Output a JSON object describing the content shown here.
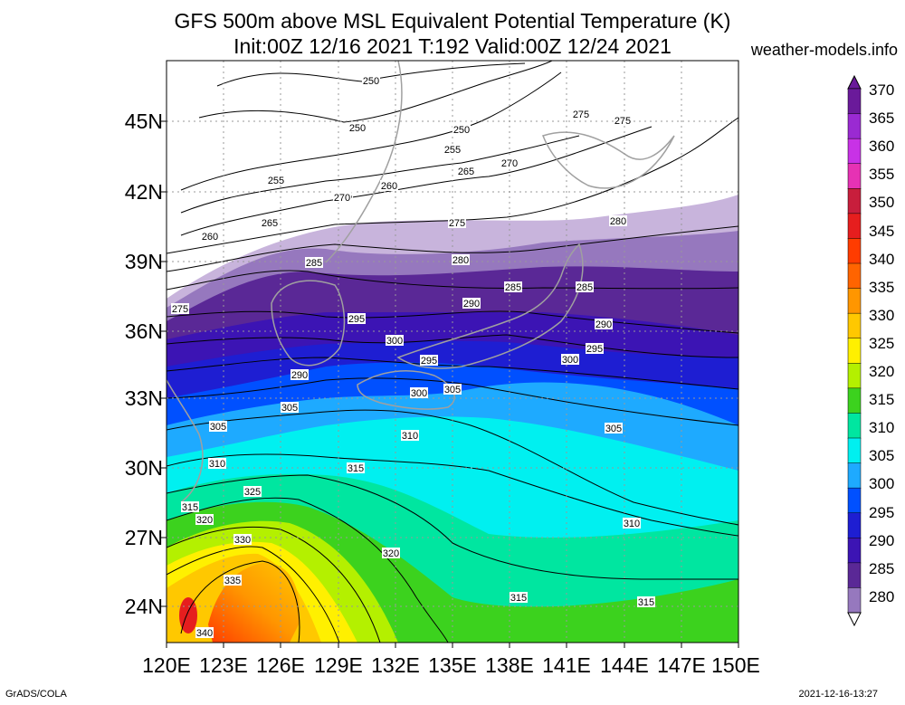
{
  "title": {
    "line1": "GFS 500m above MSL Equivalent Potential Temperature (K)",
    "line2": "Init:00Z 12/16 2021 T:192 Valid:00Z 12/24 2021"
  },
  "site": "weather-models.info",
  "footer": {
    "left": "GrADS/COLA",
    "right": "2021-12-16-13:27"
  },
  "axes": {
    "lat_labels": [
      "45N",
      "42N",
      "39N",
      "36N",
      "33N",
      "30N",
      "27N",
      "24N"
    ],
    "lon_labels": [
      "120E",
      "123E",
      "126E",
      "129E",
      "132E",
      "135E",
      "138E",
      "141E",
      "144E",
      "147E",
      "150E"
    ]
  },
  "colorbar": {
    "labels": [
      "370",
      "365",
      "360",
      "355",
      "350",
      "345",
      "340",
      "335",
      "330",
      "325",
      "320",
      "315",
      "310",
      "305",
      "300",
      "295",
      "290",
      "285",
      "280"
    ],
    "colors": [
      "#6a1a9a",
      "#9a2ad2",
      "#c832e6",
      "#e632b4",
      "#c81e3c",
      "#e61e1e",
      "#ff3c00",
      "#ff6400",
      "#ff9600",
      "#ffc800",
      "#fff000",
      "#b4f000",
      "#3cd21e",
      "#00e6a0",
      "#00f0f0",
      "#1eaaff",
      "#0050ff",
      "#1e1ed2",
      "#3c14b4",
      "#5a2896",
      "#9678be",
      "#c8b4dc"
    ]
  },
  "contour_labels": [
    "250",
    "250",
    "250",
    "255",
    "255",
    "265",
    "270",
    "255",
    "260",
    "270",
    "260",
    "265",
    "275",
    "275",
    "275",
    "280",
    "280",
    "285",
    "290",
    "285",
    "285",
    "275",
    "295",
    "300",
    "290",
    "300",
    "295",
    "295",
    "305",
    "305",
    "300",
    "290",
    "310",
    "305",
    "305",
    "315",
    "310",
    "325",
    "315",
    "320",
    "330",
    "310",
    "320",
    "335",
    "315",
    "315",
    "340"
  ],
  "colors": {
    "land_outline": "#a0a0a0",
    "grid": "#999999"
  }
}
